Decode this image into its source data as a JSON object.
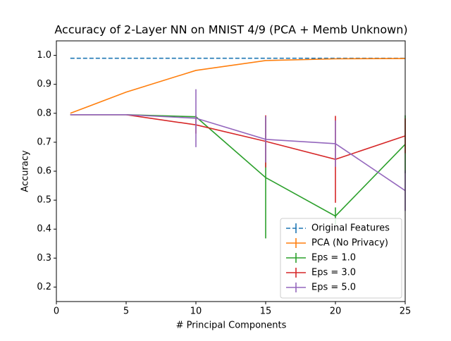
{
  "chart_data": {
    "type": "line",
    "title": "Accuracy of 2-Layer NN on MNIST 4/9 (PCA + Memb Unknown)",
    "x_label": "# Principal Components",
    "y_label": "Accuracy",
    "x": [
      1,
      5,
      10,
      15,
      20,
      25
    ],
    "series": [
      {
        "name": "Original Features",
        "color": "#1f77b4",
        "dashed": true,
        "values": [
          0.99,
          0.99,
          0.99,
          0.99,
          0.99,
          0.99
        ],
        "errors": [
          0,
          0,
          0,
          0,
          0,
          0
        ]
      },
      {
        "name": "PCA (No Privacy)",
        "color": "#ff7f0e",
        "values": [
          0.8,
          0.873,
          0.948,
          0.982,
          0.988,
          0.989
        ],
        "errors": [
          0,
          0,
          0,
          0,
          0,
          0
        ]
      },
      {
        "name": "Eps = 1.0",
        "color": "#2ca02c",
        "values": [
          0.795,
          0.795,
          0.788,
          0.578,
          0.445,
          0.693
        ],
        "errors": [
          0,
          0,
          0.005,
          0.21,
          0.03,
          0.1
        ]
      },
      {
        "name": "Eps = 3.0",
        "color": "#d62728",
        "values": [
          0.795,
          0.795,
          0.76,
          0.703,
          0.641,
          0.722
        ],
        "errors": [
          0,
          0,
          0.03,
          0.09,
          0.15,
          0.06
        ]
      },
      {
        "name": "Eps = 5.0",
        "color": "#9467bd",
        "values": [
          0.795,
          0.795,
          0.783,
          0.71,
          0.695,
          0.533
        ],
        "errors": [
          0,
          0,
          0.1,
          0.08,
          0.08,
          0.07
        ]
      }
    ],
    "xlim": [
      0,
      25
    ],
    "ylim": [
      0.15,
      1.05
    ],
    "xticks": [
      0,
      5,
      10,
      15,
      20,
      25
    ],
    "yticks": [
      0.2,
      0.3,
      0.4,
      0.5,
      0.6,
      0.7,
      0.8,
      0.9,
      {
        "value": 1.0,
        "label": "1.0"
      }
    ],
    "legend": "lower right"
  }
}
